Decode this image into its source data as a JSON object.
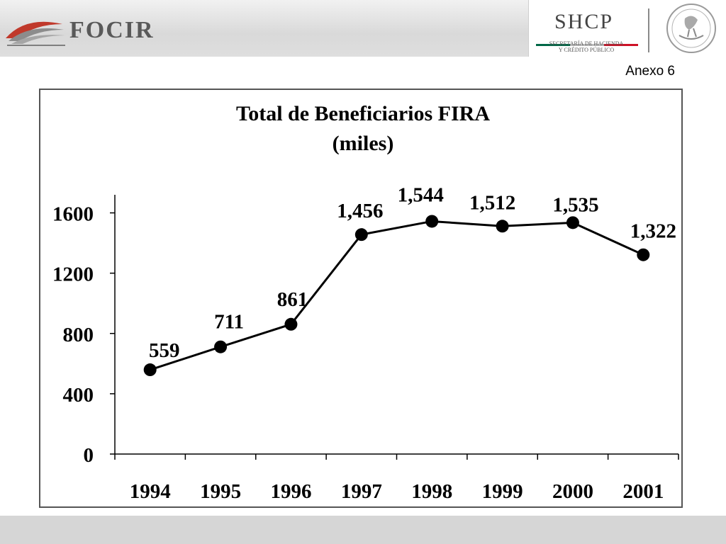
{
  "header": {
    "left_logo_text": "FOCIR",
    "right_logo_text": "SHCP",
    "right_logo_subtitle_1": "SECRETARÍA DE HACIENDA",
    "right_logo_subtitle_2": "Y CRÉDITO PÚBLICO",
    "seal_name": "mexican-coat-of-arms",
    "colors": {
      "left_band": "#dedede",
      "shcp_green": "#006847",
      "shcp_red": "#ce1126"
    }
  },
  "annex_label": "Anexo 6",
  "chart_data": {
    "type": "line",
    "title": "Total de Beneficiarios FIRA",
    "subtitle": "(miles)",
    "xlabel": "",
    "ylabel": "",
    "categories": [
      "1994",
      "1995",
      "1996",
      "1997",
      "1998",
      "1999",
      "2000",
      "2001"
    ],
    "values": [
      559,
      711,
      861,
      1456,
      1544,
      1512,
      1535,
      1322
    ],
    "data_labels": [
      "559",
      "711",
      "861",
      "1,456",
      "1,544",
      "1,512",
      "1,535",
      "1,322"
    ],
    "y_ticks": [
      0,
      400,
      800,
      1200,
      1600
    ],
    "y_tick_labels": [
      "0",
      "400",
      "800",
      "1200",
      "1600"
    ],
    "ylim": [
      0,
      1720
    ],
    "grid": false,
    "legend": "none",
    "line_color": "#000000",
    "marker": "filled-circle"
  },
  "footer": {
    "color": "#d6d6d6"
  }
}
